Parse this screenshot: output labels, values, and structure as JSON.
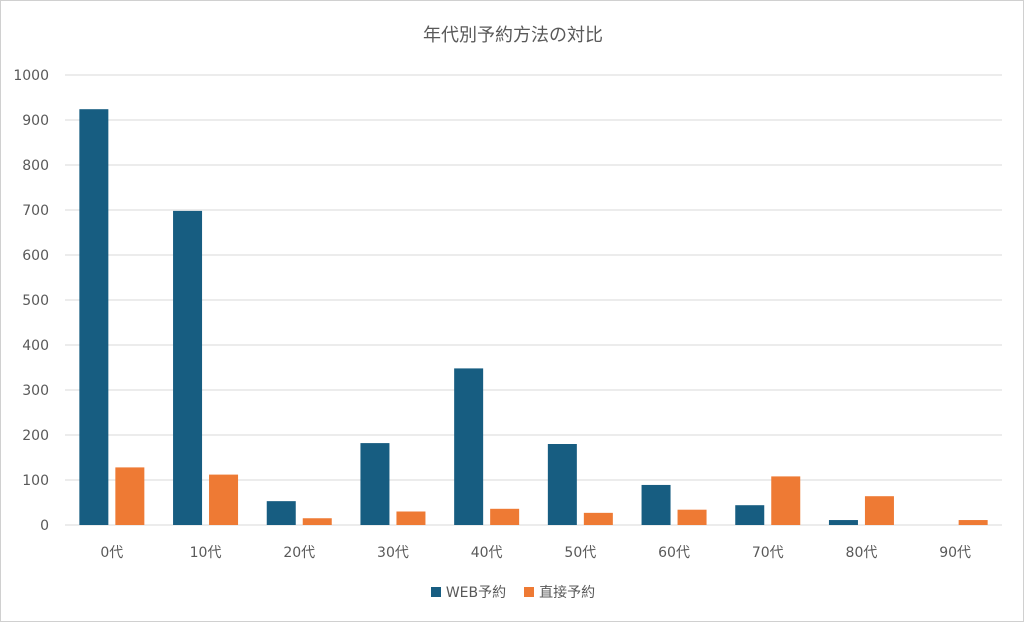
{
  "chart_data": {
    "type": "bar",
    "title": "年代別予約方法の対比",
    "categories": [
      "0代",
      "10代",
      "20代",
      "30代",
      "40代",
      "50代",
      "60代",
      "70代",
      "80代",
      "90代"
    ],
    "series": [
      {
        "name": "WEB予約",
        "color": "#175D81",
        "values": [
          924,
          698,
          53,
          182,
          348,
          180,
          89,
          44,
          11,
          0
        ]
      },
      {
        "name": "直接予約",
        "color": "#EE7A34",
        "values": [
          128,
          112,
          15,
          30,
          36,
          27,
          34,
          108,
          64,
          11
        ]
      }
    ],
    "ylim": [
      0,
      1000
    ],
    "yticks": [
      0,
      100,
      200,
      300,
      400,
      500,
      600,
      700,
      800,
      900,
      1000
    ],
    "grid": true,
    "legend_position": "bottom"
  }
}
